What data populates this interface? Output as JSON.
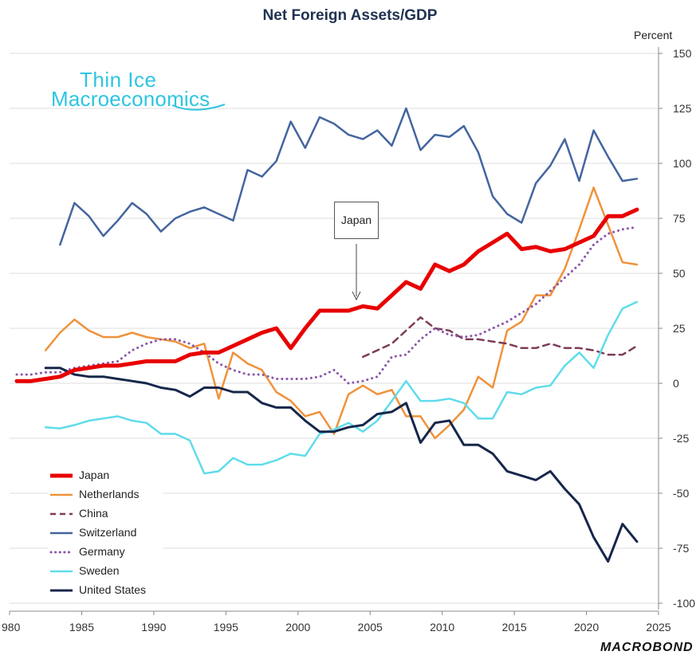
{
  "title": "Net Foreign Assets/GDP",
  "unit_label": "Percent",
  "watermark": {
    "line1": "Thin Ice",
    "line2": "Macroeconomics"
  },
  "callout": "Japan",
  "brand": "MACROBOND",
  "colors": {
    "japan": "#e80000",
    "netherlands": "#f0923a",
    "china": "#7d3b58",
    "switzerland": "#44659f",
    "germany": "#8a55a8",
    "sweden": "#5fdceb",
    "usa": "#17274a",
    "watermark": "#2ec5e0"
  },
  "chart_data": {
    "type": "line",
    "title": "Net Foreign Assets/GDP",
    "xlabel": "",
    "ylabel": "Percent",
    "xlim": [
      1980,
      2025
    ],
    "ylim": [
      -100,
      150
    ],
    "xticks": [
      "980",
      "1985",
      "1990",
      "1995",
      "2000",
      "2005",
      "2010",
      "2015",
      "2020",
      "2025"
    ],
    "yticks": [
      "150",
      "125",
      "100",
      "75",
      "50",
      "25",
      "0",
      "-25",
      "-50",
      "-75",
      "-100"
    ],
    "ytick_values": [
      150,
      125,
      100,
      75,
      50,
      25,
      0,
      -25,
      -50,
      -75,
      -100
    ],
    "annotation": {
      "text": "Japan",
      "points_to": [
        2004.3,
        37
      ]
    },
    "series": [
      {
        "key": "switzerland",
        "name": "Switzerland",
        "style": "solid",
        "width": 2.5,
        "x": [
          1983.5,
          1984.5,
          1985.5,
          1986.5,
          1987.5,
          1988.5,
          1989.5,
          1990.5,
          1991.5,
          1992.5,
          1993.5,
          1994.5,
          1995.5,
          1996.5,
          1997.5,
          1998.5,
          1999.5,
          2000.5,
          2001.5,
          2002.5,
          2003.5,
          2004.5,
          2005.5,
          2006.5,
          2007.5,
          2008.5,
          2009.5,
          2010.5,
          2011.5,
          2012.5,
          2013.5,
          2014.5,
          2015.5,
          2016.5,
          2017.5,
          2018.5,
          2019.5,
          2020.5,
          2021.5,
          2022.5,
          2023.5
        ],
        "values": [
          63,
          82,
          76,
          67,
          74,
          82,
          77,
          69,
          75,
          78,
          80,
          77,
          74,
          97,
          94,
          101,
          119,
          107,
          121,
          118,
          113,
          111,
          115,
          108,
          125,
          106,
          113,
          112,
          117,
          105,
          85,
          77,
          73,
          91,
          99,
          111,
          92,
          115,
          103,
          92,
          93
        ]
      },
      {
        "key": "netherlands",
        "name": "Netherlands",
        "style": "solid",
        "width": 2.5,
        "x": [
          1982.5,
          1983.5,
          1984.5,
          1985.5,
          1986.5,
          1987.5,
          1988.5,
          1989.5,
          1990.5,
          1991.5,
          1992.5,
          1993.5,
          1994.5,
          1995.5,
          1996.5,
          1997.5,
          1998.5,
          1999.5,
          2000.5,
          2001.5,
          2002.5,
          2003.5,
          2004.5,
          2005.5,
          2006.5,
          2007.5,
          2008.5,
          2009.5,
          2010.5,
          2011.5,
          2012.5,
          2013.5,
          2014.5,
          2015.5,
          2016.5,
          2017.5,
          2018.5,
          2019.5,
          2020.5,
          2021.5,
          2022.5,
          2023.5
        ],
        "values": [
          15,
          23,
          29,
          24,
          21,
          21,
          23,
          21,
          20,
          19,
          16,
          18,
          -7,
          14,
          9,
          6,
          -4,
          -8,
          -15,
          -13,
          -23,
          -5,
          -1,
          -5,
          -3,
          -15,
          -15,
          -25,
          -19,
          -12,
          3,
          -2,
          24,
          28,
          40,
          40,
          52,
          70,
          89,
          72,
          55,
          54
        ]
      },
      {
        "key": "china",
        "name": "China",
        "style": "dashed",
        "width": 2.5,
        "x": [
          2004.5,
          2005.5,
          2006.5,
          2007.5,
          2008.5,
          2009.5,
          2010.5,
          2011.5,
          2012.5,
          2013.5,
          2014.5,
          2015.5,
          2016.5,
          2017.5,
          2018.5,
          2019.5,
          2020.5,
          2021.5,
          2022.5,
          2023.5
        ],
        "values": [
          12,
          15,
          18,
          24,
          30,
          25,
          24,
          20,
          20,
          19,
          18,
          16,
          16,
          18,
          16,
          16,
          15,
          13,
          13,
          17
        ]
      },
      {
        "key": "germany",
        "name": "Germany",
        "style": "dotted",
        "width": 3,
        "x": [
          1980.5,
          1981.5,
          1982.5,
          1983.5,
          1984.5,
          1985.5,
          1986.5,
          1987.5,
          1988.5,
          1989.5,
          1990.5,
          1991.5,
          1992.5,
          1993.5,
          1994.5,
          1995.5,
          1996.5,
          1997.5,
          1998.5,
          1999.5,
          2000.5,
          2001.5,
          2002.5,
          2003.5,
          2004.5,
          2005.5,
          2006.5,
          2007.5,
          2008.5,
          2009.5,
          2010.5,
          2011.5,
          2012.5,
          2013.5,
          2014.5,
          2015.5,
          2016.5,
          2017.5,
          2018.5,
          2019.5,
          2020.5,
          2021.5,
          2022.5,
          2023.5
        ],
        "values": [
          4,
          4,
          5,
          5,
          7,
          8,
          9,
          10,
          15,
          18,
          20,
          20,
          18,
          14,
          9,
          6,
          4,
          4,
          2,
          2,
          2,
          3,
          6,
          0,
          1,
          3,
          12,
          13,
          20,
          25,
          22,
          21,
          22,
          25,
          28,
          32,
          36,
          42,
          48,
          54,
          63,
          68,
          70,
          71
        ]
      },
      {
        "key": "sweden",
        "name": "Sweden",
        "style": "solid",
        "width": 2.5,
        "x": [
          1982.5,
          1983.5,
          1984.5,
          1985.5,
          1986.5,
          1987.5,
          1988.5,
          1989.5,
          1990.5,
          1991.5,
          1992.5,
          1993.5,
          1994.5,
          1995.5,
          1996.5,
          1997.5,
          1998.5,
          1999.5,
          2000.5,
          2001.5,
          2002.5,
          2003.5,
          2004.5,
          2005.5,
          2006.5,
          2007.5,
          2008.5,
          2009.5,
          2010.5,
          2011.5,
          2012.5,
          2013.5,
          2014.5,
          2015.5,
          2016.5,
          2017.5,
          2018.5,
          2019.5,
          2020.5,
          2021.5,
          2022.5,
          2023.5
        ],
        "values": [
          -20,
          -20.5,
          -19,
          -17,
          -16,
          -15,
          -17,
          -18,
          -23,
          -23,
          -26,
          -41,
          -40,
          -34,
          -37,
          -37,
          -35,
          -32,
          -33,
          -23,
          -21,
          -18,
          -22,
          -17,
          -8,
          1,
          -8,
          -8,
          -7,
          -9,
          -16,
          -16,
          -4,
          -5,
          -2,
          -1,
          8,
          14,
          7,
          22,
          34,
          37
        ]
      },
      {
        "key": "usa",
        "name": "United States",
        "style": "solid",
        "width": 3,
        "x": [
          1982.5,
          1983.5,
          1984.5,
          1985.5,
          1986.5,
          1987.5,
          1988.5,
          1989.5,
          1990.5,
          1991.5,
          1992.5,
          1993.5,
          1994.5,
          1995.5,
          1996.5,
          1997.5,
          1998.5,
          1999.5,
          2000.5,
          2001.5,
          2002.5,
          2003.5,
          2004.5,
          2005.5,
          2006.5,
          2007.5,
          2008.5,
          2009.5,
          2010.5,
          2011.5,
          2012.5,
          2013.5,
          2014.5,
          2015.5,
          2016.5,
          2017.5,
          2018.5,
          2019.5,
          2020.5,
          2021.5,
          2022.5,
          2023.5
        ],
        "values": [
          7,
          7,
          4,
          3,
          3,
          2,
          1,
          0,
          -2,
          -3,
          -6,
          -2,
          -2,
          -4,
          -4,
          -9,
          -11,
          -11,
          -17,
          -22,
          -22,
          -20,
          -19,
          -14,
          -13,
          -9,
          -27,
          -18,
          -17,
          -28,
          -28,
          -32,
          -40,
          -42,
          -44,
          -40,
          -48,
          -55,
          -70,
          -81,
          -64,
          -72
        ]
      },
      {
        "key": "japan",
        "name": "Japan",
        "style": "solid",
        "width": 5,
        "x": [
          1980.5,
          1981.5,
          1982.5,
          1983.5,
          1984.5,
          1985.5,
          1986.5,
          1987.5,
          1988.5,
          1989.5,
          1990.5,
          1991.5,
          1992.5,
          1993.5,
          1994.5,
          1995.5,
          1996.5,
          1997.5,
          1998.5,
          1999.5,
          2000.5,
          2001.5,
          2002.5,
          2003.5,
          2004.5,
          2005.5,
          2006.5,
          2007.5,
          2008.5,
          2009.5,
          2010.5,
          2011.5,
          2012.5,
          2013.5,
          2014.5,
          2015.5,
          2016.5,
          2017.5,
          2018.5,
          2019.5,
          2020.5,
          2021.5,
          2022.5,
          2023.5
        ],
        "values": [
          1,
          1,
          2,
          3,
          6,
          7,
          8,
          8,
          9,
          10,
          10,
          10,
          13,
          14,
          14,
          17,
          20,
          23,
          25,
          16,
          25,
          33,
          33,
          33,
          35,
          34,
          40,
          46,
          43,
          54,
          51,
          54,
          60,
          64,
          68,
          61,
          62,
          60,
          61,
          64,
          67,
          76,
          76,
          79
        ]
      }
    ],
    "legend": [
      "Japan",
      "Netherlands",
      "China",
      "Switzerland",
      "Germany",
      "Sweden",
      "United States"
    ],
    "legend_position": "bottom-left"
  }
}
